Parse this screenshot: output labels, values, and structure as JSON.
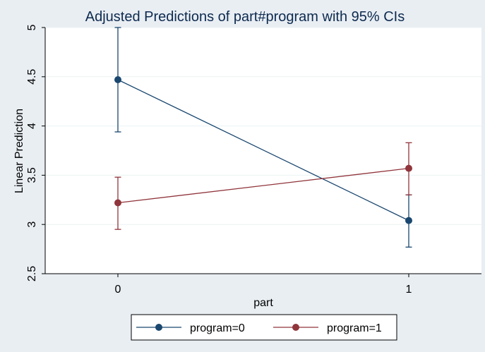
{
  "chart_data": {
    "type": "line",
    "title": "Adjusted Predictions of part#program with 95% CIs",
    "xlabel": "part",
    "ylabel": "Linear Prediction",
    "x": [
      0,
      1
    ],
    "xlim": [
      -0.25,
      1.25
    ],
    "ylim": [
      2.5,
      5
    ],
    "yticks": [
      2.5,
      3,
      3.5,
      4,
      4.5,
      5
    ],
    "ytick_labels": [
      "2.5",
      "3",
      "3.5",
      "4",
      "4.5",
      "5"
    ],
    "xticks": [
      0,
      1
    ],
    "xtick_labels": [
      "0",
      "1"
    ],
    "grid": true,
    "legend_position": "bottom",
    "series": [
      {
        "name": "program=0",
        "color": "#1a476f",
        "values": [
          4.47,
          3.04
        ],
        "ci_low": [
          3.94,
          2.77
        ],
        "ci_high": [
          5.0,
          3.3
        ]
      },
      {
        "name": "program=1",
        "color": "#90353b",
        "values": [
          3.22,
          3.57
        ],
        "ci_low": [
          2.95,
          3.3
        ],
        "ci_high": [
          3.48,
          3.83
        ]
      }
    ]
  }
}
